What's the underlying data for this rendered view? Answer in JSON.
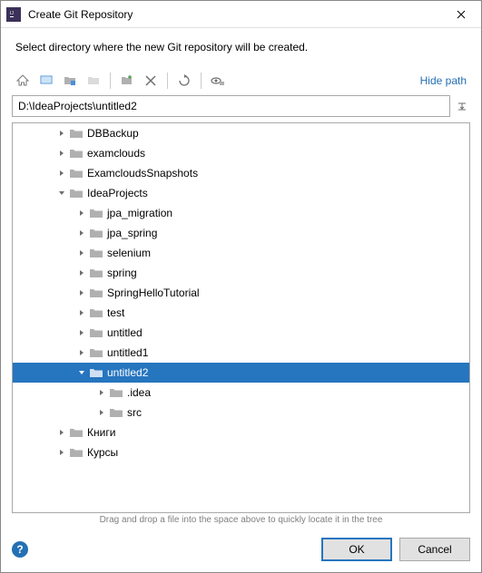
{
  "window": {
    "title": "Create Git Repository"
  },
  "instruction": "Select directory where the new Git repository will be created.",
  "toolbar": {
    "hide_path_label": "Hide path"
  },
  "path": {
    "value": "D:\\IdeaProjects\\untitled2"
  },
  "tree": {
    "items": [
      {
        "depth": 1,
        "caret": "right",
        "label": "DBBackup",
        "selected": false
      },
      {
        "depth": 1,
        "caret": "right",
        "label": "examclouds",
        "selected": false
      },
      {
        "depth": 1,
        "caret": "right",
        "label": "ExamcloudsSnapshots",
        "selected": false
      },
      {
        "depth": 1,
        "caret": "down",
        "label": "IdeaProjects",
        "selected": false
      },
      {
        "depth": 2,
        "caret": "right",
        "label": "jpa_migration",
        "selected": false
      },
      {
        "depth": 2,
        "caret": "right",
        "label": "jpa_spring",
        "selected": false
      },
      {
        "depth": 2,
        "caret": "right",
        "label": "selenium",
        "selected": false
      },
      {
        "depth": 2,
        "caret": "right",
        "label": "spring",
        "selected": false
      },
      {
        "depth": 2,
        "caret": "right",
        "label": "SpringHelloTutorial",
        "selected": false
      },
      {
        "depth": 2,
        "caret": "right",
        "label": "test",
        "selected": false
      },
      {
        "depth": 2,
        "caret": "right",
        "label": "untitled",
        "selected": false
      },
      {
        "depth": 2,
        "caret": "right",
        "label": "untitled1",
        "selected": false
      },
      {
        "depth": 2,
        "caret": "down",
        "label": "untitled2",
        "selected": true
      },
      {
        "depth": 3,
        "caret": "right",
        "label": ".idea",
        "selected": false
      },
      {
        "depth": 3,
        "caret": "right",
        "label": "src",
        "selected": false
      },
      {
        "depth": 1,
        "caret": "right",
        "label": "Книги",
        "selected": false
      },
      {
        "depth": 1,
        "caret": "right",
        "label": "Курсы",
        "selected": false
      }
    ]
  },
  "hint": "Drag and drop a file into the space above to quickly locate it in the tree",
  "buttons": {
    "ok": "OK",
    "cancel": "Cancel"
  },
  "colors": {
    "selection": "#2675bf",
    "link": "#2470b3",
    "folder": "#b0b0b0",
    "folder_selected": "#d0e0f0"
  },
  "indent": {
    "base": 24,
    "step": 22
  }
}
